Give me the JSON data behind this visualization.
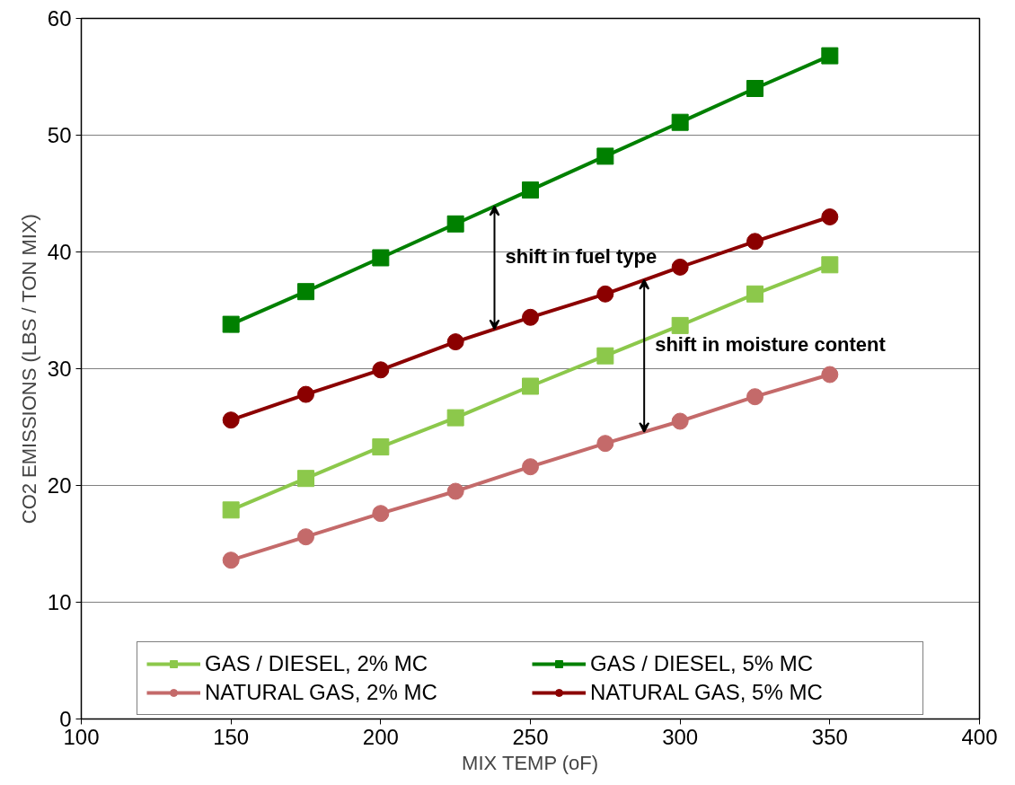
{
  "chart_data": {
    "type": "line",
    "xlabel": "MIX TEMP (oF)",
    "ylabel": "CO2 EMISSIONS (LBS / TON MIX)",
    "x": [
      150,
      175,
      200,
      225,
      250,
      275,
      300,
      325,
      350
    ],
    "series": [
      {
        "name": "GAS / DIESEL, 2% MC",
        "color": "#8cc84b",
        "marker": "square",
        "values": [
          17.9,
          20.6,
          23.3,
          25.8,
          28.5,
          31.1,
          33.7,
          36.4,
          38.9
        ]
      },
      {
        "name": "GAS / DIESEL, 5% MC",
        "color": "#008000",
        "marker": "square",
        "values": [
          33.8,
          36.6,
          39.5,
          42.4,
          45.3,
          48.2,
          51.1,
          54.0,
          56.8
        ]
      },
      {
        "name": "NATURAL GAS, 2% MC",
        "color": "#c46a6a",
        "marker": "circle",
        "values": [
          13.6,
          15.6,
          17.6,
          19.5,
          21.6,
          23.6,
          25.5,
          27.6,
          29.5
        ]
      },
      {
        "name": "NATURAL GAS, 5% MC",
        "color": "#8b0000",
        "marker": "circle",
        "values": [
          25.6,
          27.8,
          29.9,
          32.3,
          34.4,
          36.4,
          38.7,
          40.9,
          43.0
        ]
      }
    ],
    "annotations": [
      {
        "text": "shift in fuel type",
        "x": 238,
        "y": 43.9
      },
      {
        "text": "shift in moisture content",
        "x": 288,
        "y": 37.6
      }
    ],
    "xlim": [
      100,
      400
    ],
    "xticks": [
      100,
      150,
      200,
      250,
      300,
      350,
      400
    ],
    "ylim": [
      0,
      60
    ],
    "yticks": [
      0,
      10,
      20,
      30,
      40,
      50,
      60
    ],
    "grid": "y",
    "legend": "bottom",
    "line_style": "solid"
  }
}
